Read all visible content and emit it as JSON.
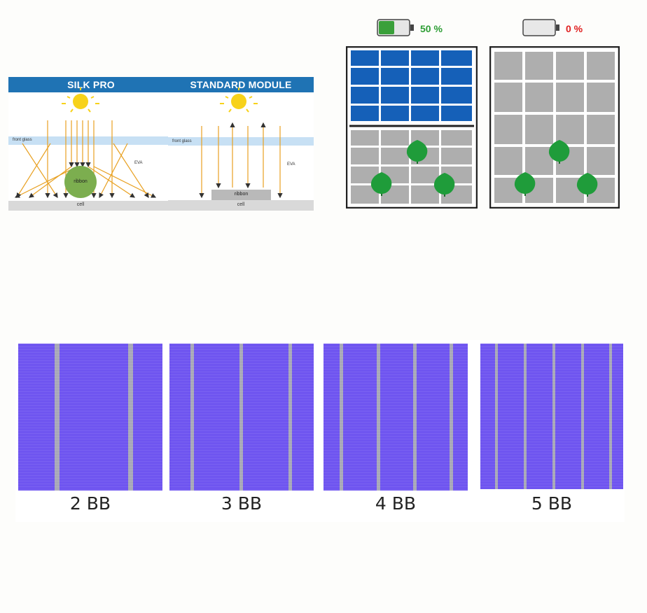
{
  "silk_pro": {
    "title": "SILK PRO",
    "front_glass": "front glass",
    "eva": "EVA",
    "ribbon": "ribbon",
    "cell": "cell"
  },
  "standard_module": {
    "title": "STANDARD MODULE",
    "front_glass": "front glass",
    "eva": "EVA",
    "ribbon": "ribbon",
    "cell": "cell"
  },
  "shading": {
    "left_battery_label": "50 %",
    "right_battery_label": "0 %",
    "left_label_color": "#2e9e35",
    "right_label_color": "#e02020"
  },
  "busbars": {
    "labels": [
      "2 BB",
      "3 BB",
      "4 BB",
      "5 BB"
    ],
    "cell_color": "#6f55f0",
    "busbar_color": "#a8a8b8"
  }
}
